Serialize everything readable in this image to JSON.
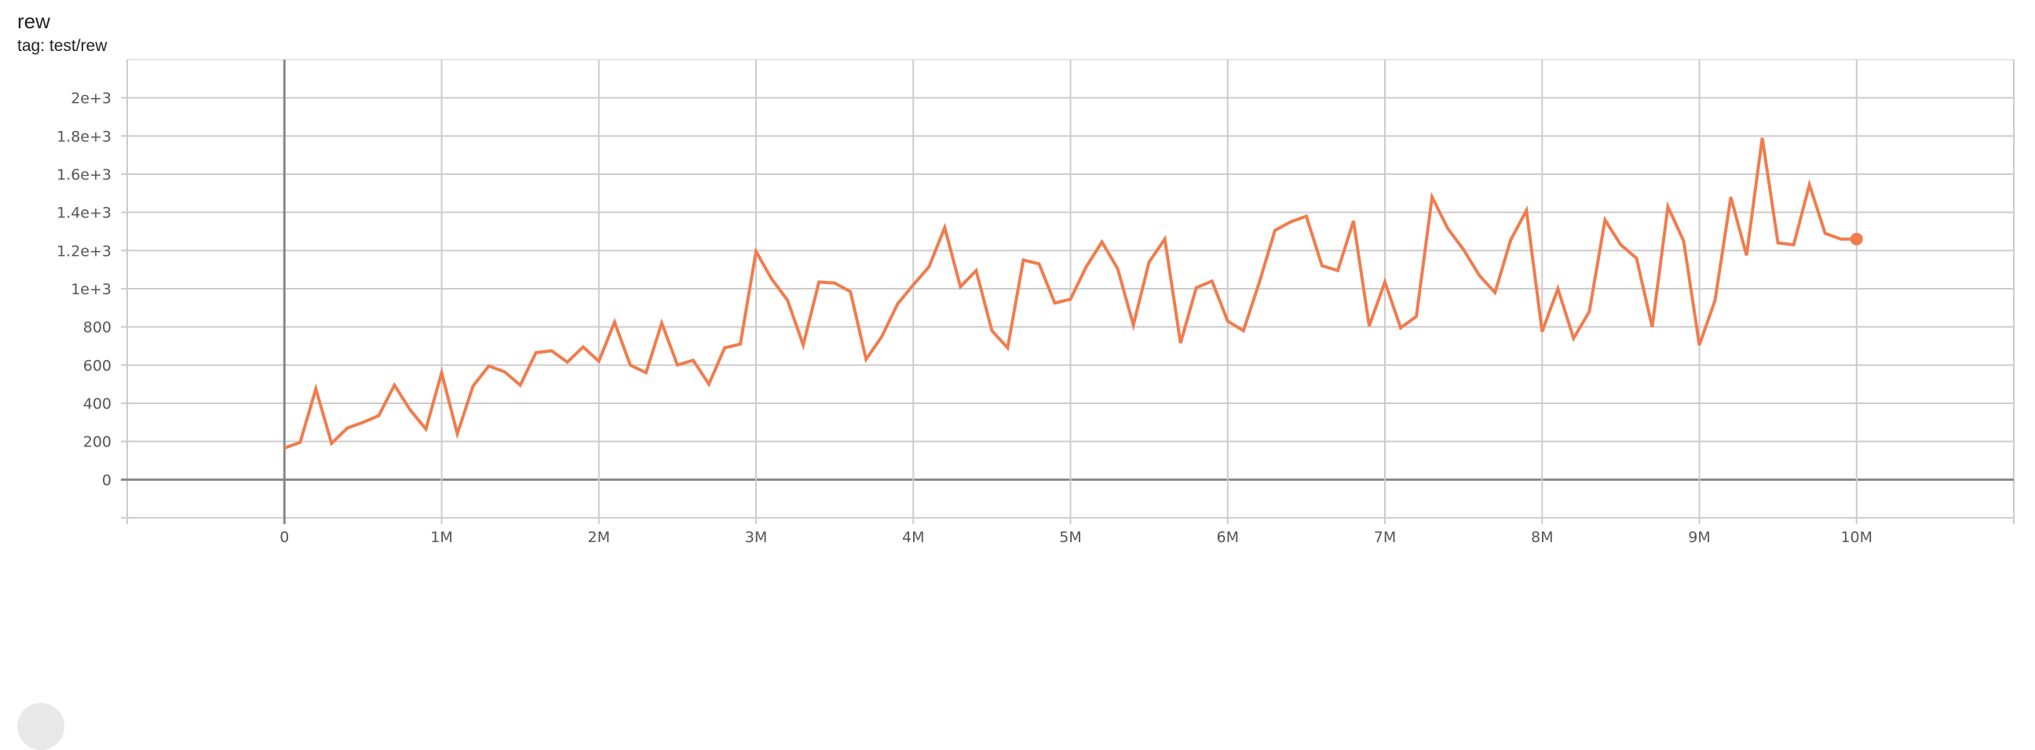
{
  "card": {
    "title": "rew",
    "tag": "tag: test/rew"
  },
  "chart_data": {
    "type": "line",
    "title": "rew",
    "xlabel": "",
    "ylabel": "",
    "xlim": [
      -1000000,
      11000000
    ],
    "ylim": [
      -200,
      2200
    ],
    "grid": true,
    "x_ticks": [
      0,
      1000000,
      2000000,
      3000000,
      4000000,
      5000000,
      6000000,
      7000000,
      8000000,
      9000000,
      10000000
    ],
    "x_tick_labels": [
      "0",
      "1M",
      "2M",
      "3M",
      "4M",
      "5M",
      "6M",
      "7M",
      "8M",
      "9M",
      "10M"
    ],
    "y_ticks": [
      0,
      200,
      400,
      600,
      800,
      1000,
      1200,
      1400,
      1600,
      1800,
      2000
    ],
    "y_tick_labels": [
      "0",
      "200",
      "400",
      "600",
      "800",
      "1e+3",
      "1.2e+3",
      "1.4e+3",
      "1.6e+3",
      "1.8e+3",
      "2e+3"
    ],
    "series": [
      {
        "color": "#f07c4d",
        "x_step": 100000,
        "x_start": 0,
        "values": [
          165,
          195,
          475,
          190,
          270,
          300,
          335,
          495,
          365,
          265,
          560,
          240,
          490,
          595,
          565,
          495,
          665,
          675,
          615,
          695,
          620,
          825,
          600,
          560,
          820,
          600,
          625,
          500,
          690,
          710,
          1195,
          1050,
          940,
          705,
          1035,
          1030,
          985,
          630,
          750,
          920,
          1020,
          1115,
          1320,
          1010,
          1095,
          780,
          690,
          1150,
          1130,
          925,
          945,
          1115,
          1245,
          1105,
          810,
          1140,
          1260,
          715,
          1005,
          1040,
          830,
          780,
          1030,
          1305,
          1350,
          1380,
          1120,
          1095,
          1355,
          805,
          1035,
          795,
          855,
          1480,
          1315,
          1205,
          1070,
          980,
          1255,
          1410,
          775,
          1000,
          740,
          880,
          1360,
          1230,
          1160,
          800,
          1430,
          1250,
          705,
          940,
          1480,
          1175,
          1790,
          1240,
          1230,
          1545,
          1290,
          1260,
          1260
        ]
      }
    ]
  }
}
